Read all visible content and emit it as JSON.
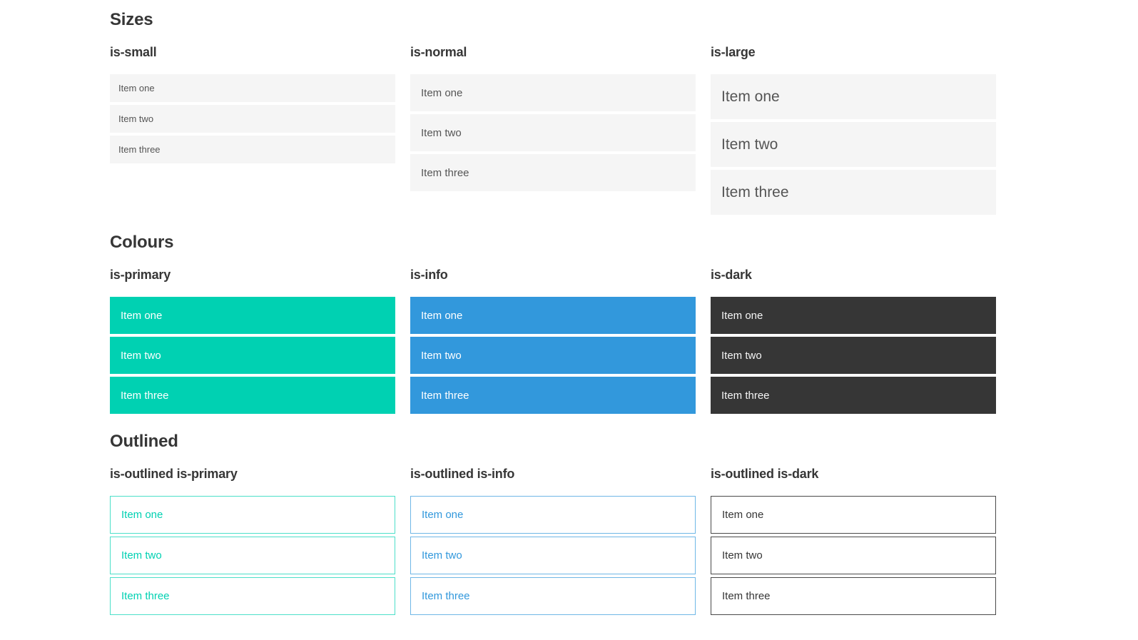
{
  "colors": {
    "primary": "#00d1b2",
    "info": "#3298dc",
    "dark": "#363636",
    "light": "#f5f5f5",
    "heading": "#363636",
    "text": "#555555",
    "white": "#ffffff",
    "dark_text": "#f5f5f5",
    "primary_border": "#00d1b2b3",
    "info_border": "#3298dcb3",
    "dark_border": "#4a4a4a"
  },
  "page": {
    "item_labels": [
      "Item one",
      "Item two",
      "Item three"
    ],
    "sections": [
      {
        "title": "Sizes",
        "groups": [
          {
            "label": "is-small"
          },
          {
            "label": "is-normal"
          },
          {
            "label": "is-large"
          }
        ]
      },
      {
        "title": "Colours",
        "groups": [
          {
            "label": "is-primary"
          },
          {
            "label": "is-info"
          },
          {
            "label": "is-dark"
          }
        ]
      },
      {
        "title": "Outlined",
        "groups": [
          {
            "label": "is-outlined is-primary"
          },
          {
            "label": "is-outlined is-info"
          },
          {
            "label": "is-outlined is-dark"
          }
        ]
      }
    ]
  }
}
